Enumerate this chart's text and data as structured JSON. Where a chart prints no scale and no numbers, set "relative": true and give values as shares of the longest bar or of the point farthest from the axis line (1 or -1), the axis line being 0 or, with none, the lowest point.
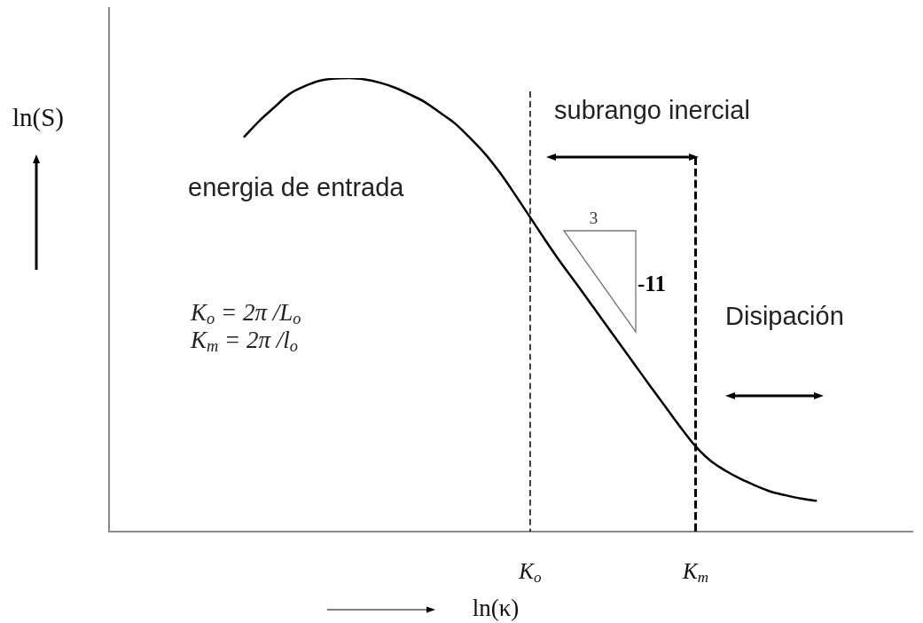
{
  "chart_data": {
    "type": "line",
    "relative": true,
    "xlabel": "ln(κ)",
    "ylabel": "ln(S)",
    "categories": [
      null,
      null,
      null,
      null,
      null,
      null,
      null,
      null,
      null,
      null,
      null,
      null,
      null,
      null,
      null,
      null,
      null,
      null,
      null,
      null,
      null,
      null,
      null,
      null,
      null,
      null,
      null,
      null,
      "K$_{o}$",
      null,
      null,
      null,
      null,
      null,
      null,
      null,
      null,
      null,
      null,
      "K$_{m}$",
      null,
      null,
      null,
      null,
      null,
      null,
      null,
      null,
      null,
      null,
      null,
      null,
      null,
      null
    ],
    "series": [
      {
        "color": "#000000",
        "values": [
          null,
          null,
          null,
          null,
          null,
          null,
          null,
          null,
          null,
          0.871,
          0.906,
          0.936,
          0.965,
          0.982,
          0.994,
          0.999,
          1,
          0.997,
          0.99,
          0.979,
          0.964,
          0.947,
          0.924,
          0.9,
          0.868,
          0.833,
          0.791,
          0.743,
          0.693,
          0.643,
          0.595,
          0.55,
          0.504,
          0.458,
          0.412,
          0.366,
          0.32,
          0.275,
          0.23,
          0.188,
          0.156,
          0.134,
          0.116,
          0.101,
          0.088,
          0.08,
          0.073,
          0.068,
          null,
          null,
          null,
          null,
          null,
          null
        ]
      }
    ],
    "ref_lines": [
      {
        "axis": "x",
        "value": "K$_{o}$",
        "line_style": "dashed",
        "color": "#000000"
      },
      {
        "axis": "x",
        "value": "K$_{m}$",
        "line_style": "dashed",
        "color": "#000000"
      }
    ],
    "annotations": [
      "energia de entrada",
      "subrango inercial",
      "K$_{o}$ = 2π /L$_{o}$",
      "K$_{m}$ = 2π /l$_{o}$",
      "3",
      "-11",
      "Disipación"
    ],
    "grid": false,
    "legend": false,
    "line_style": "solid"
  }
}
